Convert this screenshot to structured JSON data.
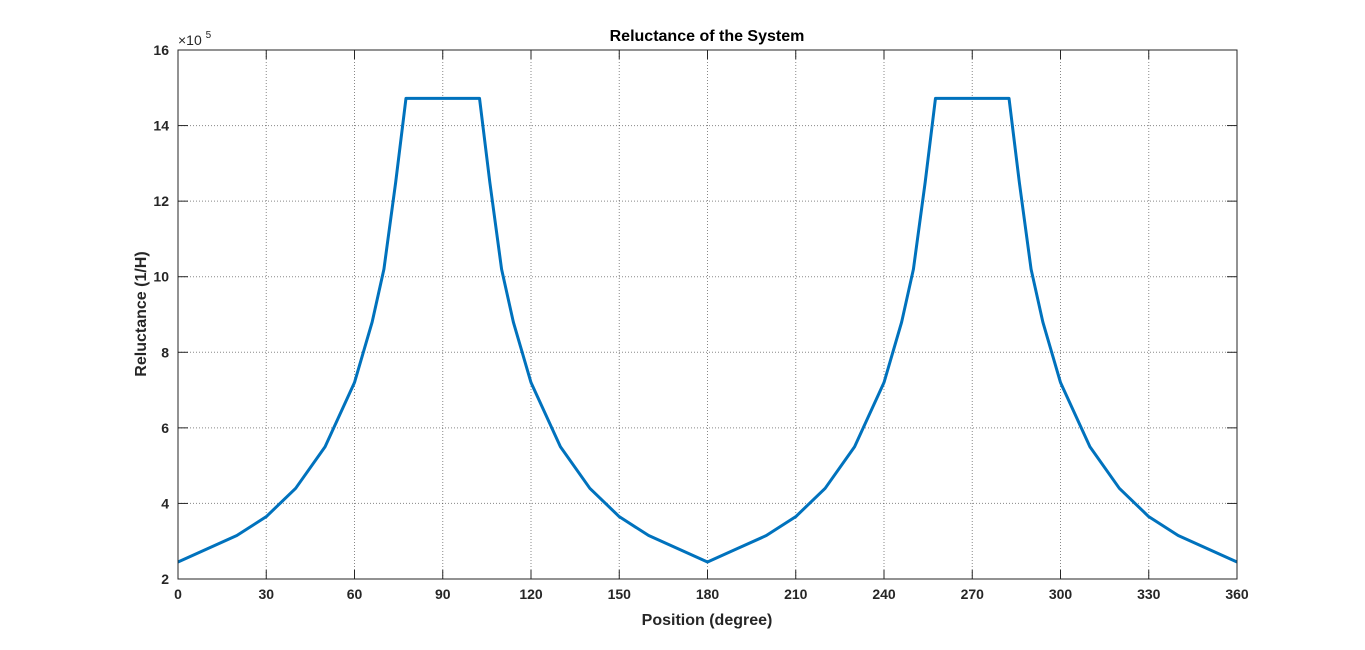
{
  "chart_data": {
    "type": "line",
    "title": "Reluctance of the System",
    "xlabel": "Position (degree)",
    "ylabel": "Reluctance (1/H)",
    "y_multiplier_base": "×10",
    "y_multiplier_exponent": "5",
    "xlim": [
      0,
      360
    ],
    "ylim": [
      2,
      16
    ],
    "x_ticks": [
      "0",
      "30",
      "60",
      "90",
      "120",
      "150",
      "180",
      "210",
      "240",
      "270",
      "300",
      "330",
      "360"
    ],
    "y_ticks": [
      "2",
      "4",
      "6",
      "8",
      "10",
      "12",
      "14",
      "16"
    ],
    "grid": true,
    "line_color": "#0072bd",
    "series": [
      {
        "x": [
          0,
          10,
          20,
          30,
          40,
          50,
          60,
          66,
          70,
          74,
          77.5,
          90,
          102.5,
          106,
          110,
          114,
          120,
          130,
          140,
          150,
          160,
          170,
          180,
          190,
          200,
          210,
          220,
          230,
          240,
          246,
          250,
          254,
          257.5,
          270,
          282.5,
          286,
          290,
          294,
          300,
          310,
          320,
          330,
          340,
          350,
          360
        ],
        "y": [
          2.45,
          2.8,
          3.15,
          3.65,
          4.4,
          5.5,
          7.2,
          8.8,
          10.2,
          12.5,
          14.72,
          14.72,
          14.72,
          12.5,
          10.2,
          8.8,
          7.2,
          5.5,
          4.4,
          3.65,
          3.15,
          2.8,
          2.45,
          2.8,
          3.15,
          3.65,
          4.4,
          5.5,
          7.2,
          8.8,
          10.2,
          12.5,
          14.72,
          14.72,
          14.72,
          12.5,
          10.2,
          8.8,
          7.2,
          5.5,
          4.4,
          3.65,
          3.15,
          2.8,
          2.45
        ]
      }
    ]
  }
}
